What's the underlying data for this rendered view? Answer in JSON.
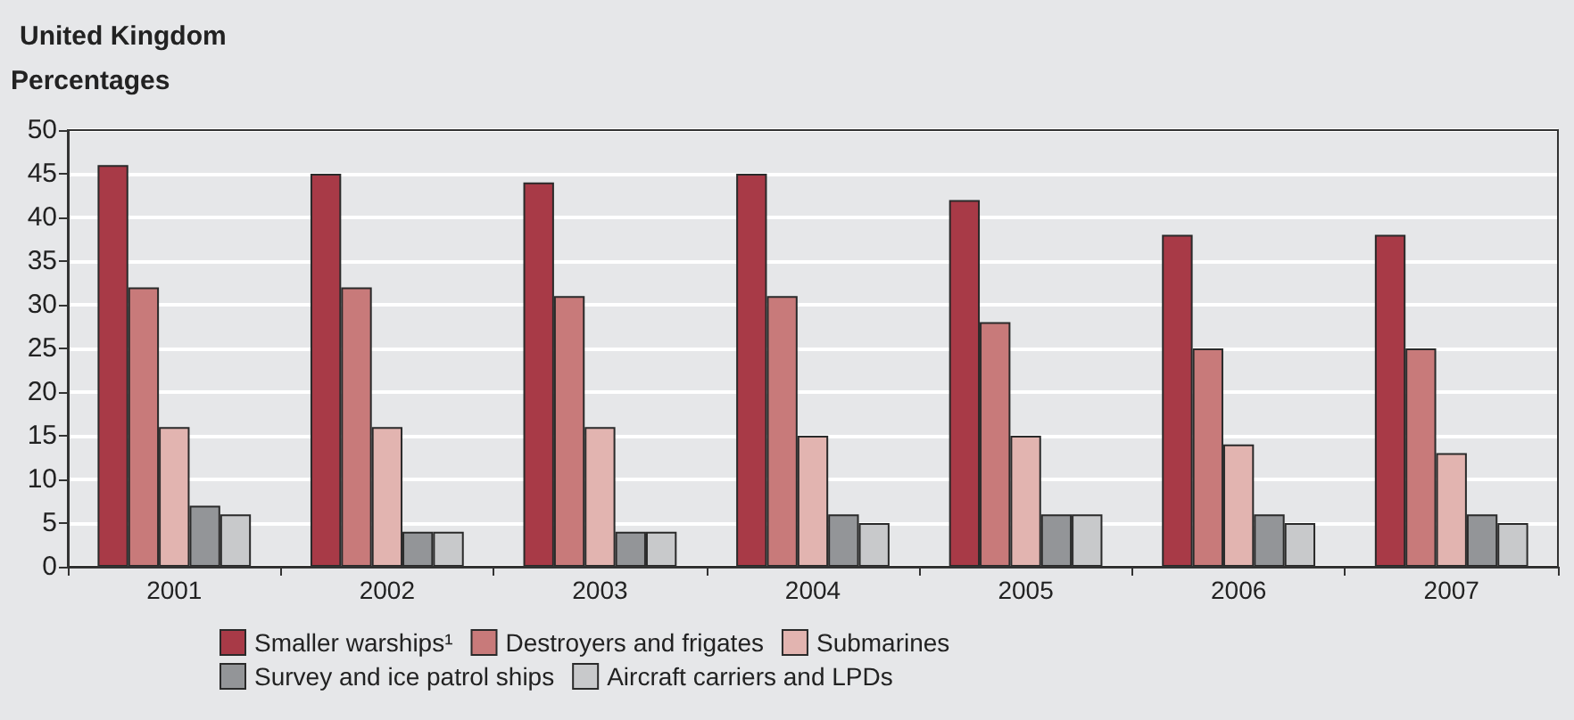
{
  "chart_data": {
    "type": "bar",
    "title": "United Kingdom",
    "ylabel": "Percentages",
    "categories": [
      "2001",
      "2002",
      "2003",
      "2004",
      "2005",
      "2006",
      "2007"
    ],
    "series": [
      {
        "name": "Smaller warships¹",
        "color": "#a83a47",
        "values": [
          46,
          45,
          44,
          45,
          42,
          38,
          38
        ]
      },
      {
        "name": "Destroyers and frigates",
        "color": "#c87a7a",
        "values": [
          32,
          32,
          31,
          31,
          28,
          25,
          25
        ]
      },
      {
        "name": "Submarines",
        "color": "#e2b4b0",
        "values": [
          16,
          16,
          16,
          15,
          15,
          14,
          13
        ]
      },
      {
        "name": "Survey and ice patrol ships",
        "color": "#939598",
        "values": [
          7,
          4,
          4,
          6,
          6,
          6,
          6
        ]
      },
      {
        "name": "Aircraft carriers and LPDs",
        "color": "#c8c9cb",
        "values": [
          6,
          4,
          4,
          5,
          6,
          5,
          5
        ]
      }
    ],
    "ylim": [
      0,
      50
    ],
    "yticks": [
      0,
      5,
      10,
      15,
      20,
      25,
      30,
      35,
      40,
      45,
      50
    ],
    "grid": "y",
    "legend": "bottom"
  }
}
